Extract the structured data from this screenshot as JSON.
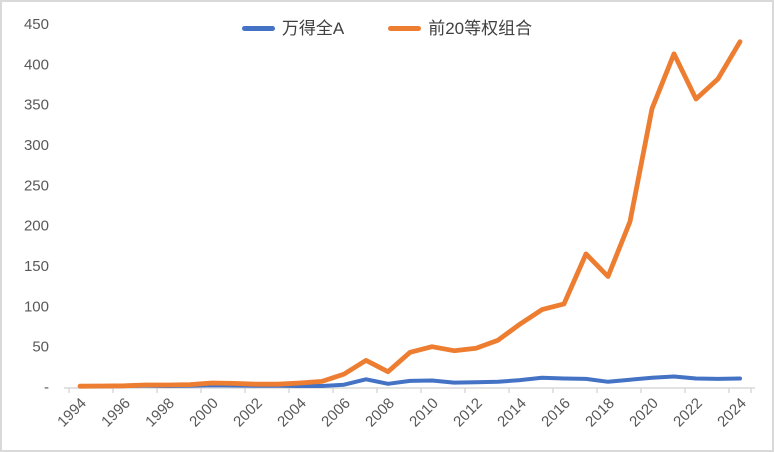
{
  "chart_data": {
    "type": "line",
    "title": "",
    "xlabel": "",
    "ylabel": "",
    "x": [
      1994,
      1995,
      1996,
      1997,
      1998,
      1999,
      2000,
      2001,
      2002,
      2003,
      2004,
      2005,
      2006,
      2007,
      2008,
      2009,
      2010,
      2011,
      2012,
      2013,
      2014,
      2015,
      2016,
      2017,
      2018,
      2019,
      2020,
      2021,
      2022,
      2023,
      2024
    ],
    "series": [
      {
        "name": "万得全A",
        "color": "#4472C4",
        "values": [
          1.0,
          0.9,
          1.2,
          1.5,
          1.3,
          1.6,
          2.1,
          1.8,
          1.5,
          1.5,
          1.3,
          1.2,
          2.8,
          9.5,
          4.0,
          7.5,
          8.0,
          5.5,
          6.0,
          6.5,
          8.5,
          11.5,
          10.5,
          10.0,
          6.5,
          9.0,
          11.5,
          13.0,
          10.5,
          10.0,
          10.5
        ]
      },
      {
        "name": "前20等权组合",
        "color": "#ED7D31",
        "values": [
          1.0,
          1.2,
          1.5,
          2.5,
          2.5,
          3.0,
          5.0,
          4.5,
          3.5,
          3.5,
          5.0,
          7.0,
          16,
          33,
          19,
          43,
          50,
          45,
          48,
          58,
          78,
          96,
          103,
          165,
          137,
          205,
          345,
          413,
          357,
          382,
          428
        ]
      }
    ],
    "ylim": [
      0,
      450
    ],
    "yticks": [
      0,
      50,
      100,
      150,
      200,
      250,
      300,
      350,
      400,
      450
    ],
    "ytick_labels": [
      "-",
      "50",
      "100",
      "150",
      "200",
      "250",
      "300",
      "350",
      "400",
      "450"
    ],
    "xtick_labels": [
      "1994",
      "1996",
      "1998",
      "2000",
      "2002",
      "2004",
      "2006",
      "2008",
      "2010",
      "2012",
      "2014",
      "2016",
      "2018",
      "2020",
      "2022",
      "2024"
    ],
    "legend_position": "top-center",
    "grid": false
  },
  "style": {
    "axis_line_color": "#d9d9d9",
    "tick_label_color": "#595959",
    "legend_text_color": "#404040",
    "background": "#ffffff"
  }
}
